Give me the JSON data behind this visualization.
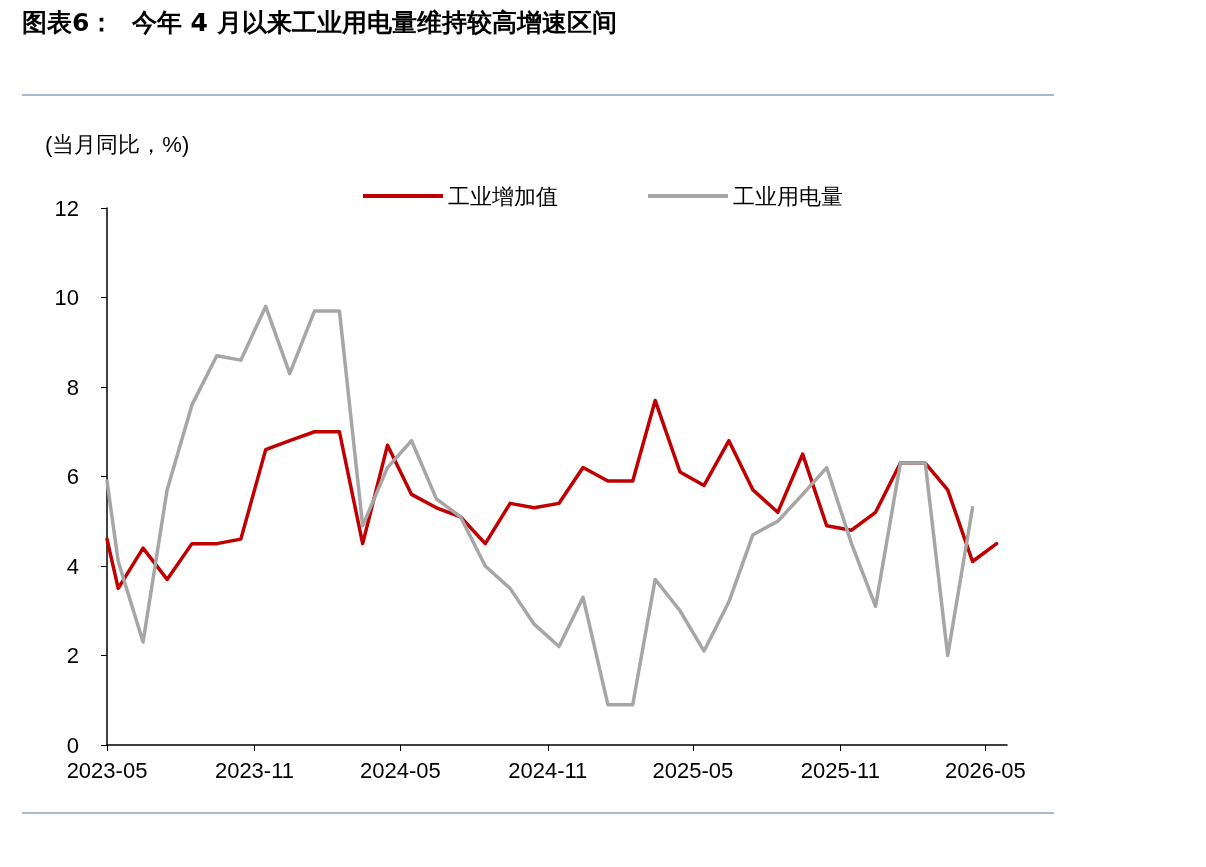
{
  "chart_data": {
    "type": "line",
    "title": "图表6：  今年 4 月以来工业用电量维持较高增速区间",
    "ylabel": "(当月同比，%)",
    "x": [
      "2023-05-01",
      "2023-05-15",
      "2023-06-15",
      "2023-07-15",
      "2023-08-15",
      "2023-09-15",
      "2023-10-15",
      "2023-11-15",
      "2023-12-15",
      "2024-01-15",
      "2024-02-15",
      "2024-03-15",
      "2024-04-15",
      "2024-05-15",
      "2024-06-15",
      "2024-07-15",
      "2024-08-15",
      "2024-09-15",
      "2024-10-15",
      "2024-11-15",
      "2024-12-15",
      "2025-01-15",
      "2025-02-15",
      "2025-03-15",
      "2025-04-15",
      "2025-05-15",
      "2025-06-15",
      "2025-07-15",
      "2025-08-15",
      "2025-09-15",
      "2025-10-15",
      "2025-11-15",
      "2025-12-15",
      "2026-01-15",
      "2026-02-15",
      "2026-03-15",
      "2026-04-15",
      "2026-05-15"
    ],
    "series": [
      {
        "name": "工业增加值",
        "color": "#c00000",
        "values": [
          4.6,
          3.5,
          4.4,
          3.7,
          4.5,
          4.5,
          4.6,
          6.6,
          6.8,
          7.0,
          7.0,
          4.5,
          6.7,
          5.6,
          5.3,
          5.1,
          4.5,
          5.4,
          5.3,
          5.4,
          6.2,
          5.9,
          5.9,
          7.7,
          6.1,
          5.8,
          6.8,
          5.7,
          5.2,
          6.5,
          4.9,
          4.8,
          5.2,
          6.3,
          6.3,
          5.7,
          4.1,
          4.5
        ]
      },
      {
        "name": "工业用电量",
        "color": "#a6a6a6",
        "values": [
          5.9,
          4.1,
          2.3,
          5.7,
          7.6,
          8.7,
          8.6,
          9.8,
          8.3,
          9.7,
          9.7,
          4.9,
          6.2,
          6.8,
          5.5,
          5.1,
          4.0,
          3.5,
          2.7,
          2.2,
          3.3,
          0.9,
          0.9,
          3.7,
          3.0,
          2.1,
          3.2,
          4.7,
          5.0,
          5.6,
          6.2,
          4.5,
          3.1,
          6.3,
          6.3,
          2.0,
          5.3,
          null
        ]
      }
    ],
    "xlim": [
      "2023-05-01",
      "2026-05-28"
    ],
    "xticks": [
      {
        "value": "2023-05-01",
        "label": "2023-05"
      },
      {
        "value": "2023-11-01",
        "label": "2023-11"
      },
      {
        "value": "2024-05-01",
        "label": "2024-05"
      },
      {
        "value": "2024-11-01",
        "label": "2024-11"
      },
      {
        "value": "2025-05-01",
        "label": "2025-05"
      },
      {
        "value": "2025-11-01",
        "label": "2025-11"
      },
      {
        "value": "2026-05-01",
        "label": "2026-05"
      }
    ],
    "ylim": [
      0,
      12
    ],
    "yticks": [
      0,
      2,
      4,
      6,
      8,
      10,
      12
    ],
    "grid": false,
    "legend": "top",
    "marker": "none",
    "line_style": "solid"
  }
}
